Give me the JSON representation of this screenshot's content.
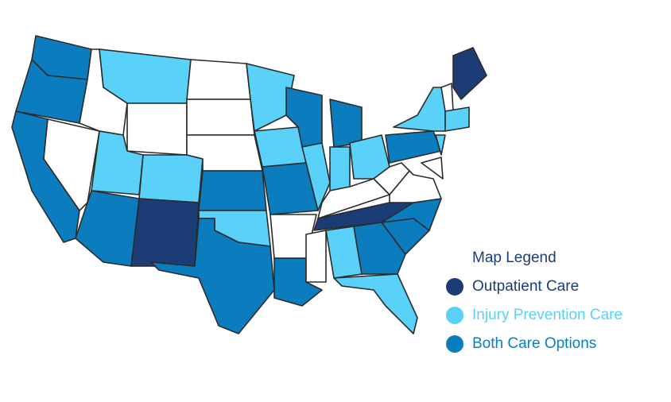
{
  "legend": {
    "title": "Map Legend",
    "title_color": "#1c3c75",
    "items": [
      {
        "label": "Outpatient Care",
        "color": "#1c3c75"
      },
      {
        "label": "Injury Prevention Care",
        "color": "#5ad1f8"
      },
      {
        "label": "Both Care Options",
        "color": "#0b7dbf"
      }
    ]
  }
}
